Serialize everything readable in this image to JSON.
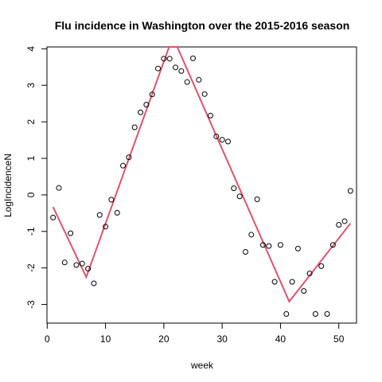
{
  "chart_data": {
    "type": "scatter",
    "title": "Flu incidence in Washington over the 2015-2016 season",
    "xlabel": "week",
    "ylabel": "LogIncidenceN",
    "xlim": [
      -0.04,
      53.04
    ],
    "ylim": [
      -3.51,
      4.05
    ],
    "x_ticks": [
      0,
      10,
      20,
      30,
      40,
      50
    ],
    "y_ticks": [
      -3,
      -2,
      -1,
      0,
      1,
      2,
      3,
      4
    ],
    "grid": false,
    "legend": "none",
    "colors": {
      "points": "#000000",
      "fit_line": "#DF536B"
    },
    "series": [
      {
        "kind": "points",
        "x": [
          1,
          2,
          3,
          4,
          5,
          6,
          7,
          8,
          9,
          10,
          11,
          12,
          13,
          14,
          15,
          16,
          17,
          18,
          19,
          20,
          21,
          22,
          23,
          24,
          25,
          26,
          27,
          28,
          29,
          30,
          31,
          32,
          33,
          34,
          35,
          36,
          37,
          38,
          39,
          40,
          41,
          42,
          43,
          44,
          45,
          46,
          47,
          48,
          49,
          50,
          51,
          52
        ],
        "y": [
          -0.62,
          0.19,
          -1.85,
          -1.05,
          -1.92,
          -1.88,
          -2.02,
          -2.42,
          -0.55,
          -0.87,
          -0.13,
          -0.49,
          0.8,
          1.03,
          1.85,
          2.26,
          2.47,
          2.75,
          3.46,
          3.73,
          3.73,
          3.49,
          3.39,
          3.09,
          3.74,
          3.15,
          2.76,
          2.17,
          1.6,
          1.51,
          1.46,
          0.18,
          -0.04,
          -1.56,
          -1.09,
          -0.12,
          -1.37,
          -1.4,
          -2.38,
          -1.37,
          -3.26,
          -2.38,
          -1.47,
          -2.63,
          -2.15,
          -3.26,
          -1.95,
          -3.26,
          -1.37,
          -0.82,
          -0.72,
          0.11
        ]
      },
      {
        "kind": "line",
        "x": [
          1,
          6.7,
          20.9,
          22.3,
          41.5,
          52
        ],
        "y": [
          -0.33,
          -2.25,
          4.05,
          4.05,
          -2.92,
          -0.78
        ]
      }
    ]
  }
}
